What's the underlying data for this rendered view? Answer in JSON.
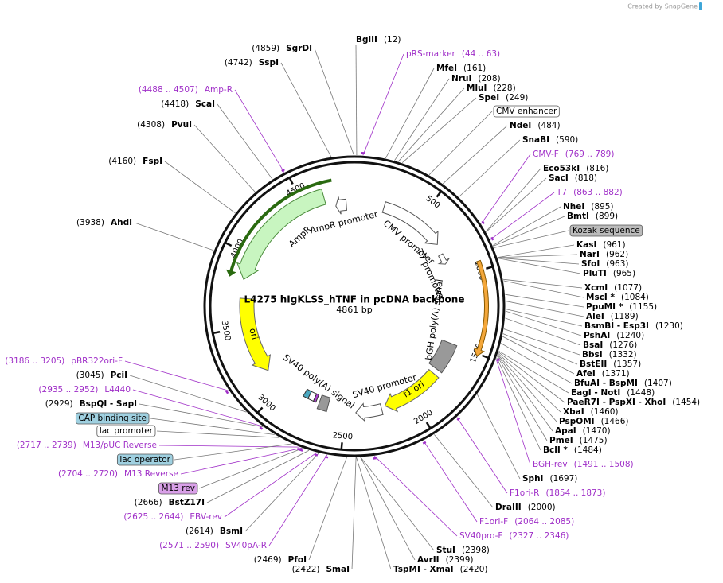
{
  "header": {
    "credit": "Created by SnapGene"
  },
  "map": {
    "title": "L4275 hIgKLSS_hTNF in pcDNA backbone",
    "length": "4861 bp",
    "ticks": [
      "500",
      "1000",
      "1500",
      "2000",
      "2500",
      "3000",
      "3500",
      "4000",
      "4500"
    ]
  },
  "features": [
    {
      "label": "AmpR promoter"
    },
    {
      "label": "AmpR"
    },
    {
      "label": "CMV promoter"
    },
    {
      "label": "T7 promoter"
    },
    {
      "label": "bGH poly(A) signal"
    },
    {
      "label": "f1 ori"
    },
    {
      "label": "SV40 promoter"
    },
    {
      "label": "SV40 poly(A) signal"
    },
    {
      "label": "ori"
    }
  ],
  "sites": [
    {
      "name": "BglII",
      "position": "(12)"
    },
    {
      "name": "MfeI",
      "position": "(161)"
    },
    {
      "name": "NruI",
      "position": "(208)"
    },
    {
      "name": "MluI",
      "position": "(228)"
    },
    {
      "name": "SpeI",
      "position": "(249)"
    },
    {
      "name": "NdeI",
      "position": "(484)"
    },
    {
      "name": "SnaBI",
      "position": "(590)"
    },
    {
      "name": "Eco53kI",
      "position": "(816)"
    },
    {
      "name": "SacI",
      "position": "(818)"
    },
    {
      "name": "NheI",
      "position": "(895)"
    },
    {
      "name": "BmtI",
      "position": "(899)"
    },
    {
      "name": "KasI",
      "position": "(961)"
    },
    {
      "name": "NarI",
      "position": "(962)"
    },
    {
      "name": "SfoI",
      "position": "(963)"
    },
    {
      "name": "PluTI",
      "position": "(965)"
    },
    {
      "name": "XcmI",
      "position": "(1077)"
    },
    {
      "name": "MscI *",
      "position": "(1084)"
    },
    {
      "name": "PpuMI *",
      "position": "(1155)"
    },
    {
      "name": "AleI",
      "position": "(1189)"
    },
    {
      "name": "BsmBI - Esp3I",
      "position": "(1230)"
    },
    {
      "name": "PshAI",
      "position": "(1240)"
    },
    {
      "name": "BsaI",
      "position": "(1276)"
    },
    {
      "name": "BbsI",
      "position": "(1332)"
    },
    {
      "name": "BstEII",
      "position": "(1357)"
    },
    {
      "name": "AfeI",
      "position": "(1371)"
    },
    {
      "name": "BfuAI - BspMI",
      "position": "(1407)"
    },
    {
      "name": "EagI - NotI",
      "position": "(1448)"
    },
    {
      "name": "PaeR7I - PspXI - XhoI",
      "position": "(1454)"
    },
    {
      "name": "XbaI",
      "position": "(1460)"
    },
    {
      "name": "PspOMI",
      "position": "(1466)"
    },
    {
      "name": "ApaI",
      "position": "(1470)"
    },
    {
      "name": "PmeI",
      "position": "(1475)"
    },
    {
      "name": "BclI *",
      "position": "(1484)"
    },
    {
      "name": "SphI",
      "position": "(1697)"
    },
    {
      "name": "DraIII",
      "position": "(2000)"
    },
    {
      "name": "StuI",
      "position": "(2398)"
    },
    {
      "name": "AvrII",
      "position": "(2399)"
    },
    {
      "name": "TspMI - XmaI",
      "position": "(2420)"
    },
    {
      "name": "SgrDI",
      "position": "(4859)"
    },
    {
      "name": "SspI",
      "position": "(4742)"
    },
    {
      "name": "ScaI",
      "position": "(4418)"
    },
    {
      "name": "PvuI",
      "position": "(4308)"
    },
    {
      "name": "FspI",
      "position": "(4160)"
    },
    {
      "name": "AhdI",
      "position": "(3938)"
    },
    {
      "name": "PciI",
      "position": "(3045)"
    },
    {
      "name": "BspQI - SapI",
      "position": "(2929)"
    },
    {
      "name": "BstZ17I",
      "position": "(2666)"
    },
    {
      "name": "BsmI",
      "position": "(2614)"
    },
    {
      "name": "PfoI",
      "position": "(2469)"
    },
    {
      "name": "SmaI",
      "position": "(2422)"
    }
  ],
  "primers": [
    {
      "name": "pRS-marker",
      "range": "(44 .. 63)"
    },
    {
      "name": "CMV-F",
      "range": "(769 .. 789)"
    },
    {
      "name": "T7",
      "range": "(863 .. 882)"
    },
    {
      "name": "BGH-rev",
      "range": "(1491 .. 1508)"
    },
    {
      "name": "F1ori-R",
      "range": "(1854 .. 1873)"
    },
    {
      "name": "F1ori-F",
      "range": "(2064 .. 2085)"
    },
    {
      "name": "SV40pro-F",
      "range": "(2327 .. 2346)"
    },
    {
      "name": "Amp-R",
      "range": "(4488 .. 4507)"
    },
    {
      "name": "pBR322ori-F",
      "range": "(3186 .. 3205)"
    },
    {
      "name": "L4440",
      "range": "(2935 .. 2952)"
    },
    {
      "name": "M13/pUC Reverse",
      "range": "(2717 .. 2739)"
    },
    {
      "name": "M13 Reverse",
      "range": "(2704 .. 2720)"
    },
    {
      "name": "EBV-rev",
      "range": "(2625 .. 2644)"
    },
    {
      "name": "SV40pA-R",
      "range": "(2571 .. 2590)"
    }
  ],
  "boxes": [
    {
      "label": "CMV enhancer"
    },
    {
      "label": "Kozak sequence"
    },
    {
      "label": "CAP binding site"
    },
    {
      "label": "lac promoter"
    },
    {
      "label": "lac operator"
    },
    {
      "label": "M13 rev"
    }
  ]
}
